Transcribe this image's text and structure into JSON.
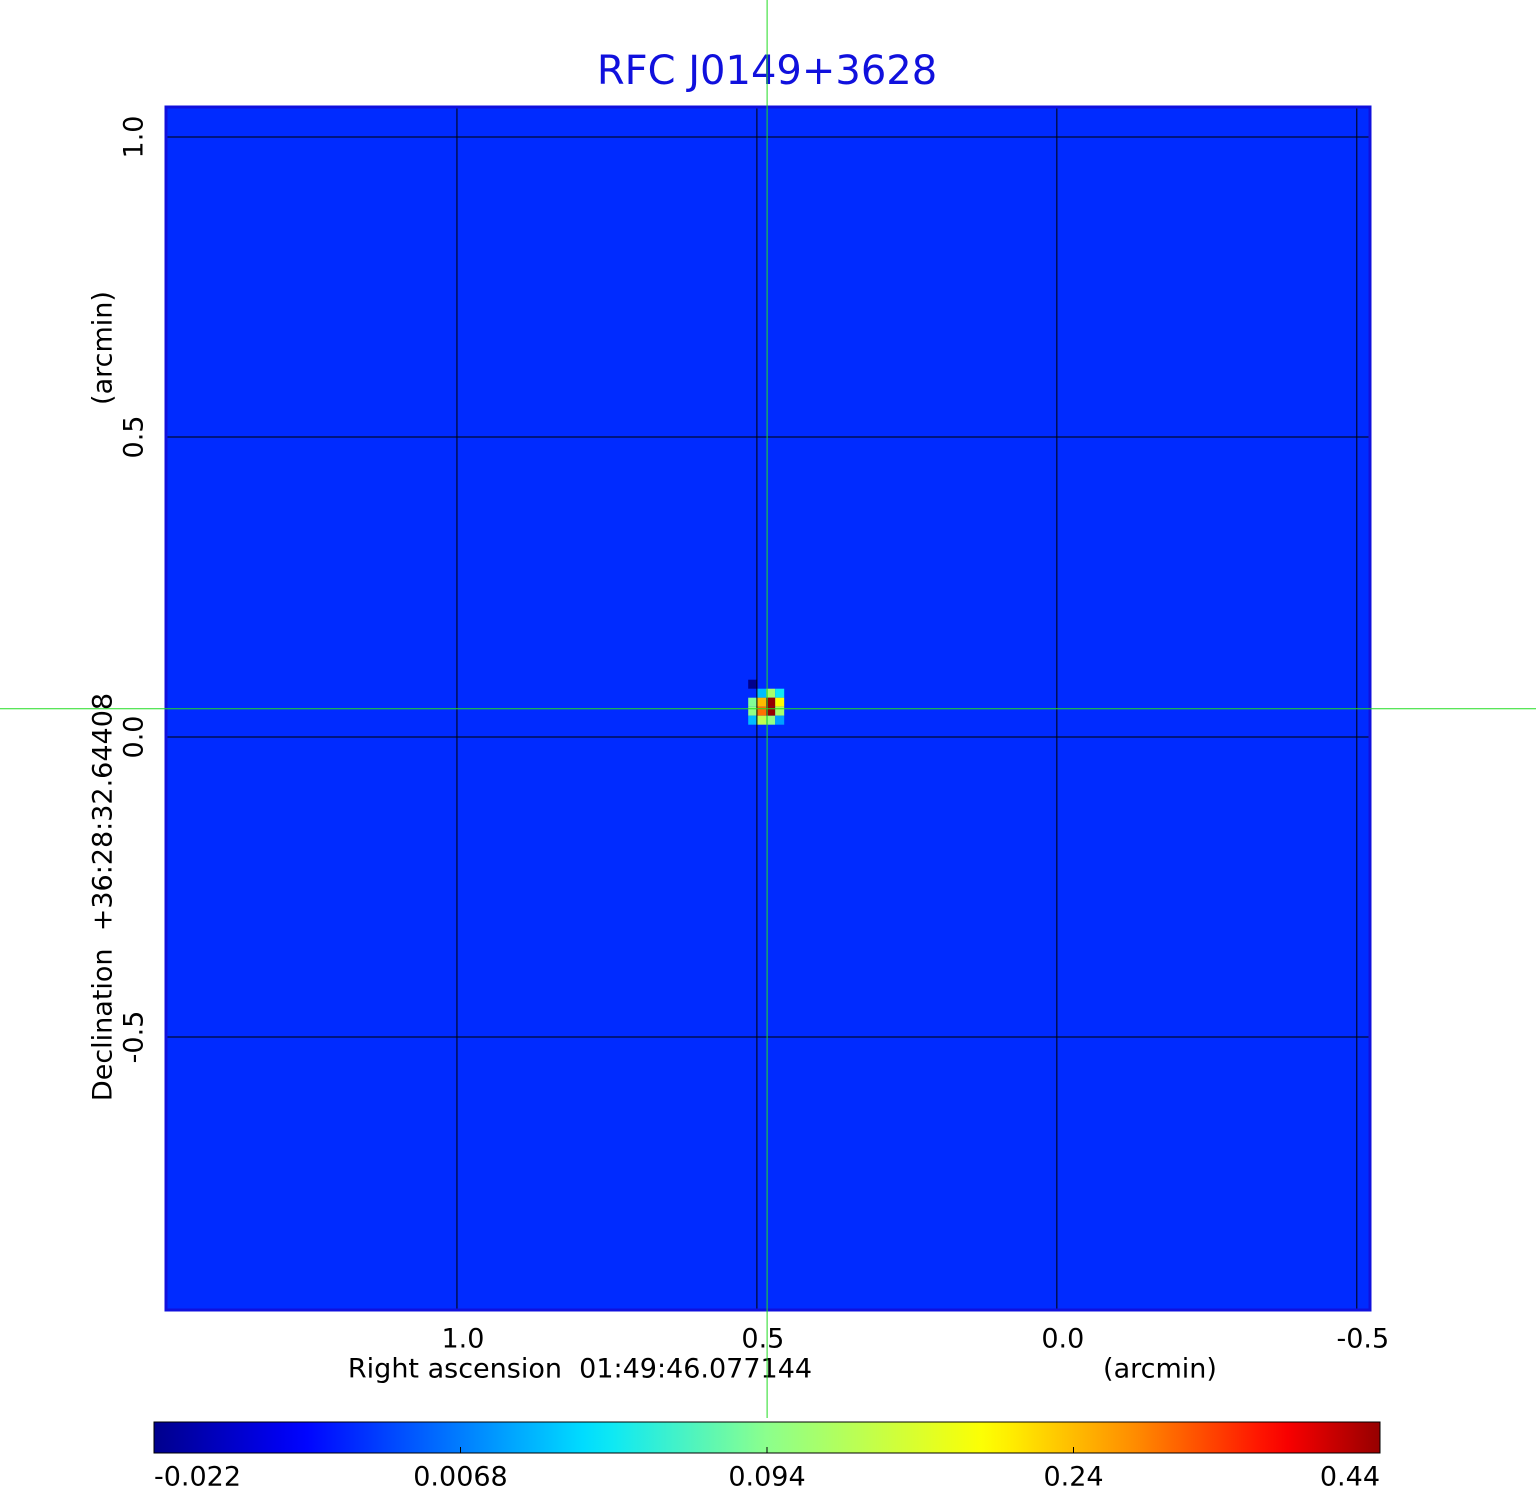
{
  "chart_data": {
    "type": "image",
    "title": "RFC J0149+3628",
    "xlabel": "Right ascension  01:49:46.077144",
    "xunit": "(arcmin)",
    "ylabel": "Declination  +36:28:32.64408",
    "yunit": "(arcmin)",
    "xlim": [
      1.485,
      -0.522
    ],
    "ylim": [
      -0.955,
      1.05
    ],
    "xticks": [
      {
        "value": 1,
        "label": "1.0"
      },
      0.5,
      {
        "value": 0,
        "label": "0.0"
      },
      -0.5
    ],
    "yticks": [
      -0.5,
      {
        "value": 0,
        "label": "0.0"
      },
      0.5,
      {
        "value": 1,
        "label": "1.0"
      }
    ],
    "grid": true,
    "frame_color": "#1010dd",
    "title_color": "#1010dd",
    "colormap": "jet",
    "clim": [
      -0.022,
      0.44
    ],
    "cticks": [
      -0.022,
      0.0068,
      0.094,
      0.24,
      0.44
    ],
    "background_value": -0.003,
    "crosshair": {
      "x": 0.483,
      "y": 0.047,
      "color": "#22dd22"
    },
    "pixels": [
      {
        "x": 0.507,
        "y": 0.088,
        "value": -0.022
      },
      {
        "x": 0.492,
        "y": 0.073,
        "value": 0.03
      },
      {
        "x": 0.477,
        "y": 0.073,
        "value": 0.12
      },
      {
        "x": 0.462,
        "y": 0.073,
        "value": 0.05
      },
      {
        "x": 0.507,
        "y": 0.058,
        "value": 0.09
      },
      {
        "x": 0.492,
        "y": 0.058,
        "value": 0.24
      },
      {
        "x": 0.477,
        "y": 0.058,
        "value": 0.44
      },
      {
        "x": 0.462,
        "y": 0.058,
        "value": 0.2
      },
      {
        "x": 0.507,
        "y": 0.043,
        "value": 0.1
      },
      {
        "x": 0.492,
        "y": 0.043,
        "value": 0.3
      },
      {
        "x": 0.477,
        "y": 0.043,
        "value": 0.44
      },
      {
        "x": 0.462,
        "y": 0.043,
        "value": 0.12
      },
      {
        "x": 0.507,
        "y": 0.028,
        "value": 0.03
      },
      {
        "x": 0.492,
        "y": 0.028,
        "value": 0.14
      },
      {
        "x": 0.477,
        "y": 0.028,
        "value": 0.1
      },
      {
        "x": 0.462,
        "y": 0.028,
        "value": 0.02
      }
    ]
  }
}
